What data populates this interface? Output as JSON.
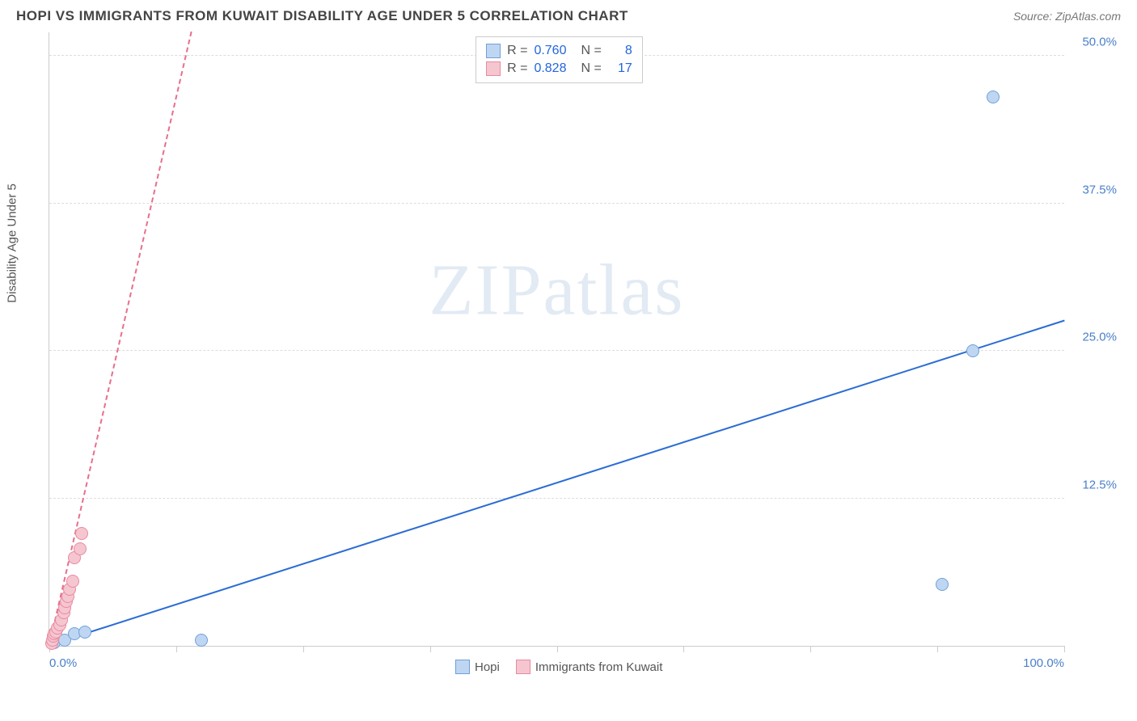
{
  "header": {
    "title": "HOPI VS IMMIGRANTS FROM KUWAIT DISABILITY AGE UNDER 5 CORRELATION CHART",
    "source": "Source: ZipAtlas.com"
  },
  "chart": {
    "type": "scatter",
    "y_axis_label": "Disability Age Under 5",
    "watermark": "ZIPatlas",
    "background_color": "#ffffff",
    "grid_color": "#dddddd",
    "axis_color": "#cccccc",
    "tick_label_color": "#4a7fc9",
    "xlim": [
      0,
      100
    ],
    "ylim": [
      0,
      52
    ],
    "x_ticks": [
      0,
      12.5,
      25,
      37.5,
      50,
      62.5,
      75,
      87.5,
      100
    ],
    "x_tick_labels": {
      "0": "0.0%",
      "100": "100.0%"
    },
    "y_ticks": [
      12.5,
      25.0,
      37.5,
      50.0
    ],
    "y_tick_labels": [
      "12.5%",
      "25.0%",
      "37.5%",
      "50.0%"
    ],
    "series": [
      {
        "name": "Hopi",
        "color_fill": "#bfd6f2",
        "color_stroke": "#6fa0d8",
        "marker_size": 16,
        "trend_color": "#2b6cd4",
        "trend_width": 2,
        "trend_dash": "solid",
        "trend_from": [
          0,
          0
        ],
        "trend_to": [
          100,
          27.5
        ],
        "R": "0.760",
        "N": "8",
        "points": [
          [
            0.5,
            0.3
          ],
          [
            1.5,
            0.5
          ],
          [
            2.5,
            1.0
          ],
          [
            3.5,
            1.2
          ],
          [
            15,
            0.5
          ],
          [
            88,
            5.2
          ],
          [
            91,
            25.0
          ],
          [
            93,
            46.5
          ]
        ]
      },
      {
        "name": "Immigrants from Kuwait",
        "color_fill": "#f5c6d0",
        "color_stroke": "#e88aa0",
        "marker_size": 16,
        "trend_color": "#e76f8c",
        "trend_width": 2,
        "trend_dash": "dashed",
        "trend_from": [
          0,
          0
        ],
        "trend_to": [
          14,
          52
        ],
        "R": "0.828",
        "N": "17",
        "points": [
          [
            0.2,
            0.2
          ],
          [
            0.3,
            0.5
          ],
          [
            0.4,
            0.8
          ],
          [
            0.5,
            1.0
          ],
          [
            0.6,
            1.2
          ],
          [
            0.8,
            1.5
          ],
          [
            1.0,
            1.8
          ],
          [
            1.2,
            2.2
          ],
          [
            1.4,
            2.8
          ],
          [
            1.5,
            3.2
          ],
          [
            1.7,
            3.8
          ],
          [
            1.8,
            4.2
          ],
          [
            2.0,
            4.8
          ],
          [
            2.3,
            5.5
          ],
          [
            2.5,
            7.5
          ],
          [
            3.0,
            8.2
          ],
          [
            3.2,
            9.5
          ]
        ]
      }
    ],
    "legend_labels": [
      "Hopi",
      "Immigrants from Kuwait"
    ],
    "stats_labels": {
      "R": "R =",
      "N": "N ="
    }
  }
}
